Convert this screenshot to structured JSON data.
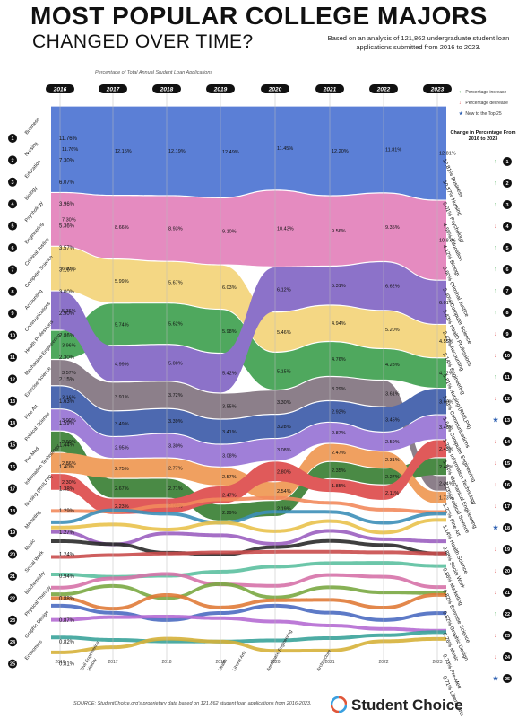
{
  "header": {
    "title": "MOST POPULAR COLLEGE MAJORS",
    "subtitle": "CHANGED OVER TIME?",
    "note": "Based on an analysis of 121,862 undergraduate student loan applications submitted from 2016 to 2023."
  },
  "axis_note": "Percentage of Total Annual Student Loan Applications",
  "legend": {
    "increase": "Percentage increase",
    "decrease": "Percentage decrease",
    "new": "New to the Top 25"
  },
  "change_header": "Change in Percentage From 2016 to 2023",
  "source": "SOURCE: StudentChoice.org's proprietary data based on 121,862 student loan applications from 2016-2023.",
  "brand": "Student Choice",
  "colors": {
    "increase": "#2e9e3a",
    "decrease": "#d62728"
  },
  "chart_data": {
    "type": "area",
    "title": "MOST POPULAR COLLEGE MAJORS CHANGED OVER TIME?",
    "years": [
      "2016",
      "2017",
      "2018",
      "2019",
      "2020",
      "2021",
      "2022",
      "2023"
    ],
    "ranks": [
      "1",
      "2",
      "3",
      "4",
      "5",
      "6",
      "7",
      "8",
      "9",
      "10",
      "11",
      "12",
      "13",
      "14",
      "15",
      "16",
      "17",
      "18",
      "19",
      "20",
      "21",
      "22",
      "23",
      "24",
      "25"
    ],
    "left_labels": [
      "Business",
      "Nursing",
      "Education",
      "Biology",
      "Psychology",
      "Engineering",
      "Criminal Justice",
      "Computer Science",
      "Accounting",
      "Communications",
      "Health Professions",
      "Mechanical Engineering",
      "Exercise Science",
      "Fine Art",
      "Political Science",
      "Pre-Med",
      "Information Technology",
      "Nursing (RN/LPN)",
      "Marketing",
      "Music",
      "Social Work",
      "Biochemistry",
      "Physical Therapy",
      "Graphic Design",
      "Economics"
    ],
    "left_values": [
      "11.76%",
      "7.30%",
      "6.07%",
      "3.96%",
      "5.36%",
      "3.57%",
      "3.16%",
      "3.00%",
      "2.90%",
      "2.86%",
      "2.30%",
      "2.15%",
      "1.63%",
      "1.59%",
      "1.44%",
      "1.40%",
      "1.38%",
      "1.29%",
      "1.27%",
      "1.24%",
      "0.94%",
      "0.88%",
      "0.87%",
      "0.82%",
      "0.81%"
    ],
    "bottom_new_labels": [
      "Civil Engineering",
      "History",
      "Health",
      "Liberal Arts",
      "Aerospace Engineering",
      "Architecture"
    ],
    "right_labels": [
      "Business",
      "Nursing",
      "Psychology",
      "Education",
      "Biology",
      "Criminal Justice",
      "Computer Science",
      "Health Professions",
      "Accounting",
      "Engineering",
      "Nursing (RN/LPN)",
      "Communications",
      "Computer Engineering",
      "Information Technology",
      "Mechanical Engineering",
      "Political Science",
      "Fine Art",
      "Health Science",
      "Social Work",
      "Marketing",
      "Exercise Science",
      "Graphic Design",
      "Music",
      "Pre-Med",
      "Liberal Arts"
    ],
    "right_values": [
      "12.81%",
      "10.87%",
      "6.01%",
      "4.55%",
      "4.12%",
      "3.60%",
      "3.40%",
      "2.43%",
      "2.42%",
      "2.14%",
      "1.81%",
      "1.73%",
      "1.64%",
      "1.36%",
      "1.34%",
      "1.23%",
      "1.22%",
      "1.14%",
      "0.88%",
      "0.86%",
      "0.82%",
      "0.82%",
      "0.76%",
      "0.73%",
      "0.71%"
    ],
    "right_change": [
      "up",
      "up",
      "up",
      "down",
      "up",
      "up",
      "up",
      "up",
      "down",
      "down",
      "up",
      "down",
      "new",
      "down",
      "down",
      "down",
      "down",
      "new",
      "down",
      "down",
      "down",
      "up",
      "down",
      "down",
      "new"
    ],
    "series": [
      {
        "name": "Business",
        "color": "#5b7fd6",
        "values": [
          11.76,
          12.15,
          12.19,
          12.49,
          11.45,
          12.2,
          11.81,
          12.81
        ]
      },
      {
        "name": "Nursing",
        "color": "#e58bc0",
        "values": [
          7.3,
          8.66,
          8.93,
          9.1,
          10.43,
          9.56,
          9.35,
          10.87
        ]
      },
      {
        "name": "Education",
        "color": "#f4d784",
        "values": [
          6.07,
          5.99,
          5.67,
          6.03,
          5.46,
          4.94,
          5.2,
          4.55
        ]
      },
      {
        "name": "Biology",
        "color": "#4fa85e",
        "values": [
          3.96,
          5.74,
          5.62,
          5.98,
          5.15,
          4.76,
          4.28,
          4.12
        ]
      },
      {
        "name": "Psychology",
        "color": "#8c72c9",
        "values": [
          5.36,
          4.99,
          5.0,
          5.42,
          6.12,
          5.31,
          6.62,
          6.01
        ]
      },
      {
        "name": "Engineering",
        "color": "#8c7f8a",
        "values": [
          3.57,
          3.91,
          3.72,
          3.55,
          3.3,
          3.29,
          3.61,
          2.14
        ]
      },
      {
        "name": "Criminal Justice",
        "color": "#4d69b0",
        "values": [
          3.16,
          3.49,
          3.39,
          3.41,
          3.28,
          2.92,
          3.45,
          3.6
        ]
      },
      {
        "name": "Computer Science",
        "color": "#a07fd8",
        "values": [
          3.0,
          2.95,
          3.3,
          3.08,
          3.08,
          2.87,
          2.59,
          3.4
        ]
      },
      {
        "name": "Accounting",
        "color": "#4a8a45",
        "values": [
          2.9,
          2.67,
          2.71,
          2.29,
          2.19,
          2.35,
          2.27,
          2.42
        ]
      },
      {
        "name": "Communications",
        "color": "#f0a060",
        "values": [
          2.86,
          2.75,
          2.77,
          2.57,
          2.54,
          2.47,
          2.31,
          1.73
        ]
      },
      {
        "name": "Health Professions",
        "color": "#e05a5a",
        "values": [
          2.3,
          2.23,
          2.09,
          2.47,
          2.8,
          1.85,
          2.11,
          2.43
        ]
      }
    ]
  }
}
